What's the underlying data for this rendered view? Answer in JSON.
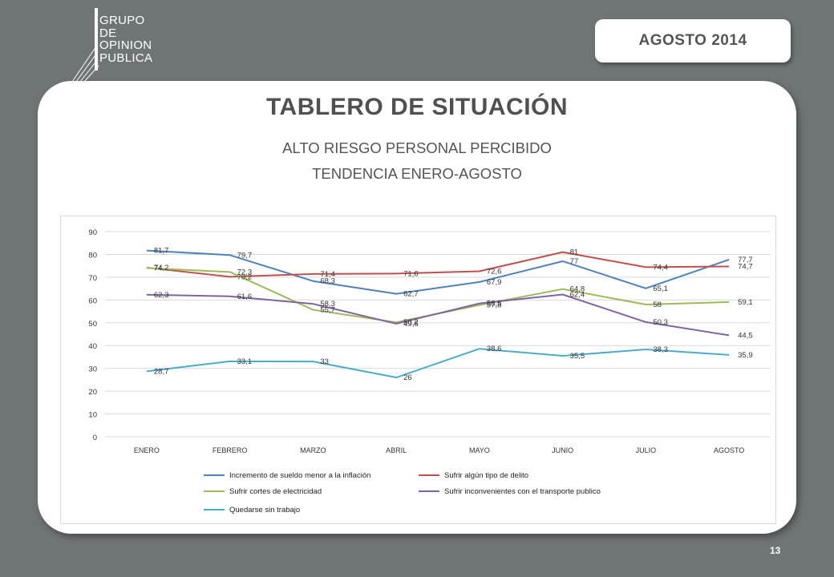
{
  "logo": {
    "lines": [
      "GRUPO",
      "DE",
      "OPINION",
      "PUBLICA"
    ]
  },
  "badge": "AGOSTO  2014",
  "title": "TABLERO DE SITUACIÓN",
  "subtitle1": "ALTO  RIESGO PERSONAL PERCIBIDO",
  "subtitle2": "TENDENCIA ENERO-AGOSTO",
  "page_number": "13",
  "chart_data": {
    "type": "line",
    "categories": [
      "ENERO",
      "FEBRERO",
      "MARZO",
      "ABRIL",
      "MAYO",
      "JUNIO",
      "JULIO",
      "AGOSTO"
    ],
    "ylim": [
      0,
      90
    ],
    "yticks": [
      0,
      10,
      20,
      30,
      40,
      50,
      60,
      70,
      80,
      90
    ],
    "grid": true,
    "legend_position": "bottom",
    "series": [
      {
        "name": "Incremento de sueldo menor a la inflación",
        "color": "#4f81bd",
        "values": [
          81.7,
          79.7,
          68.3,
          62.7,
          67.9,
          77,
          65.1,
          77.7
        ],
        "labels": [
          "81,7",
          "79,7",
          "68,3",
          "62,7",
          "67,9",
          "77",
          "65,1",
          "77,7"
        ]
      },
      {
        "name": "Sufrir algún tipo de delito",
        "color": "#c0504d",
        "values": [
          74.2,
          70.2,
          71.4,
          71.6,
          72.6,
          81,
          74.4,
          74.7
        ],
        "labels": [
          "74,2",
          "70,2",
          "71,4",
          "71,6",
          "72,6",
          "81",
          "74,4",
          "74,7"
        ]
      },
      {
        "name": "Sufrir cortes de electricidad",
        "color": "#9bbb59",
        "values": [
          74,
          72.3,
          55.7,
          50.2,
          57.8,
          64.8,
          58,
          59.1
        ],
        "labels": [
          "74",
          "72,3",
          "55,7",
          "50,2",
          "57,8",
          "64,8",
          "58",
          "59,1"
        ]
      },
      {
        "name": "Sufrir inconvenientes con el transporte publico",
        "color": "#8064a2",
        "values": [
          62.3,
          61.6,
          58.3,
          49.6,
          58.5,
          62.4,
          50.3,
          44.5
        ],
        "labels": [
          "62,3",
          "61,6",
          "58,3",
          "49,6",
          "58,5",
          "62,4",
          "50,3",
          "44,5"
        ]
      },
      {
        "name": "Quedarse sin trabajo",
        "color": "#4bacc6",
        "values": [
          28.7,
          33.1,
          33,
          26,
          38.6,
          35.5,
          38.3,
          35.9
        ],
        "labels": [
          "28,7",
          "33,1",
          "33",
          "26",
          "38,6",
          "35,5",
          "38,3",
          "35,9"
        ]
      }
    ]
  }
}
